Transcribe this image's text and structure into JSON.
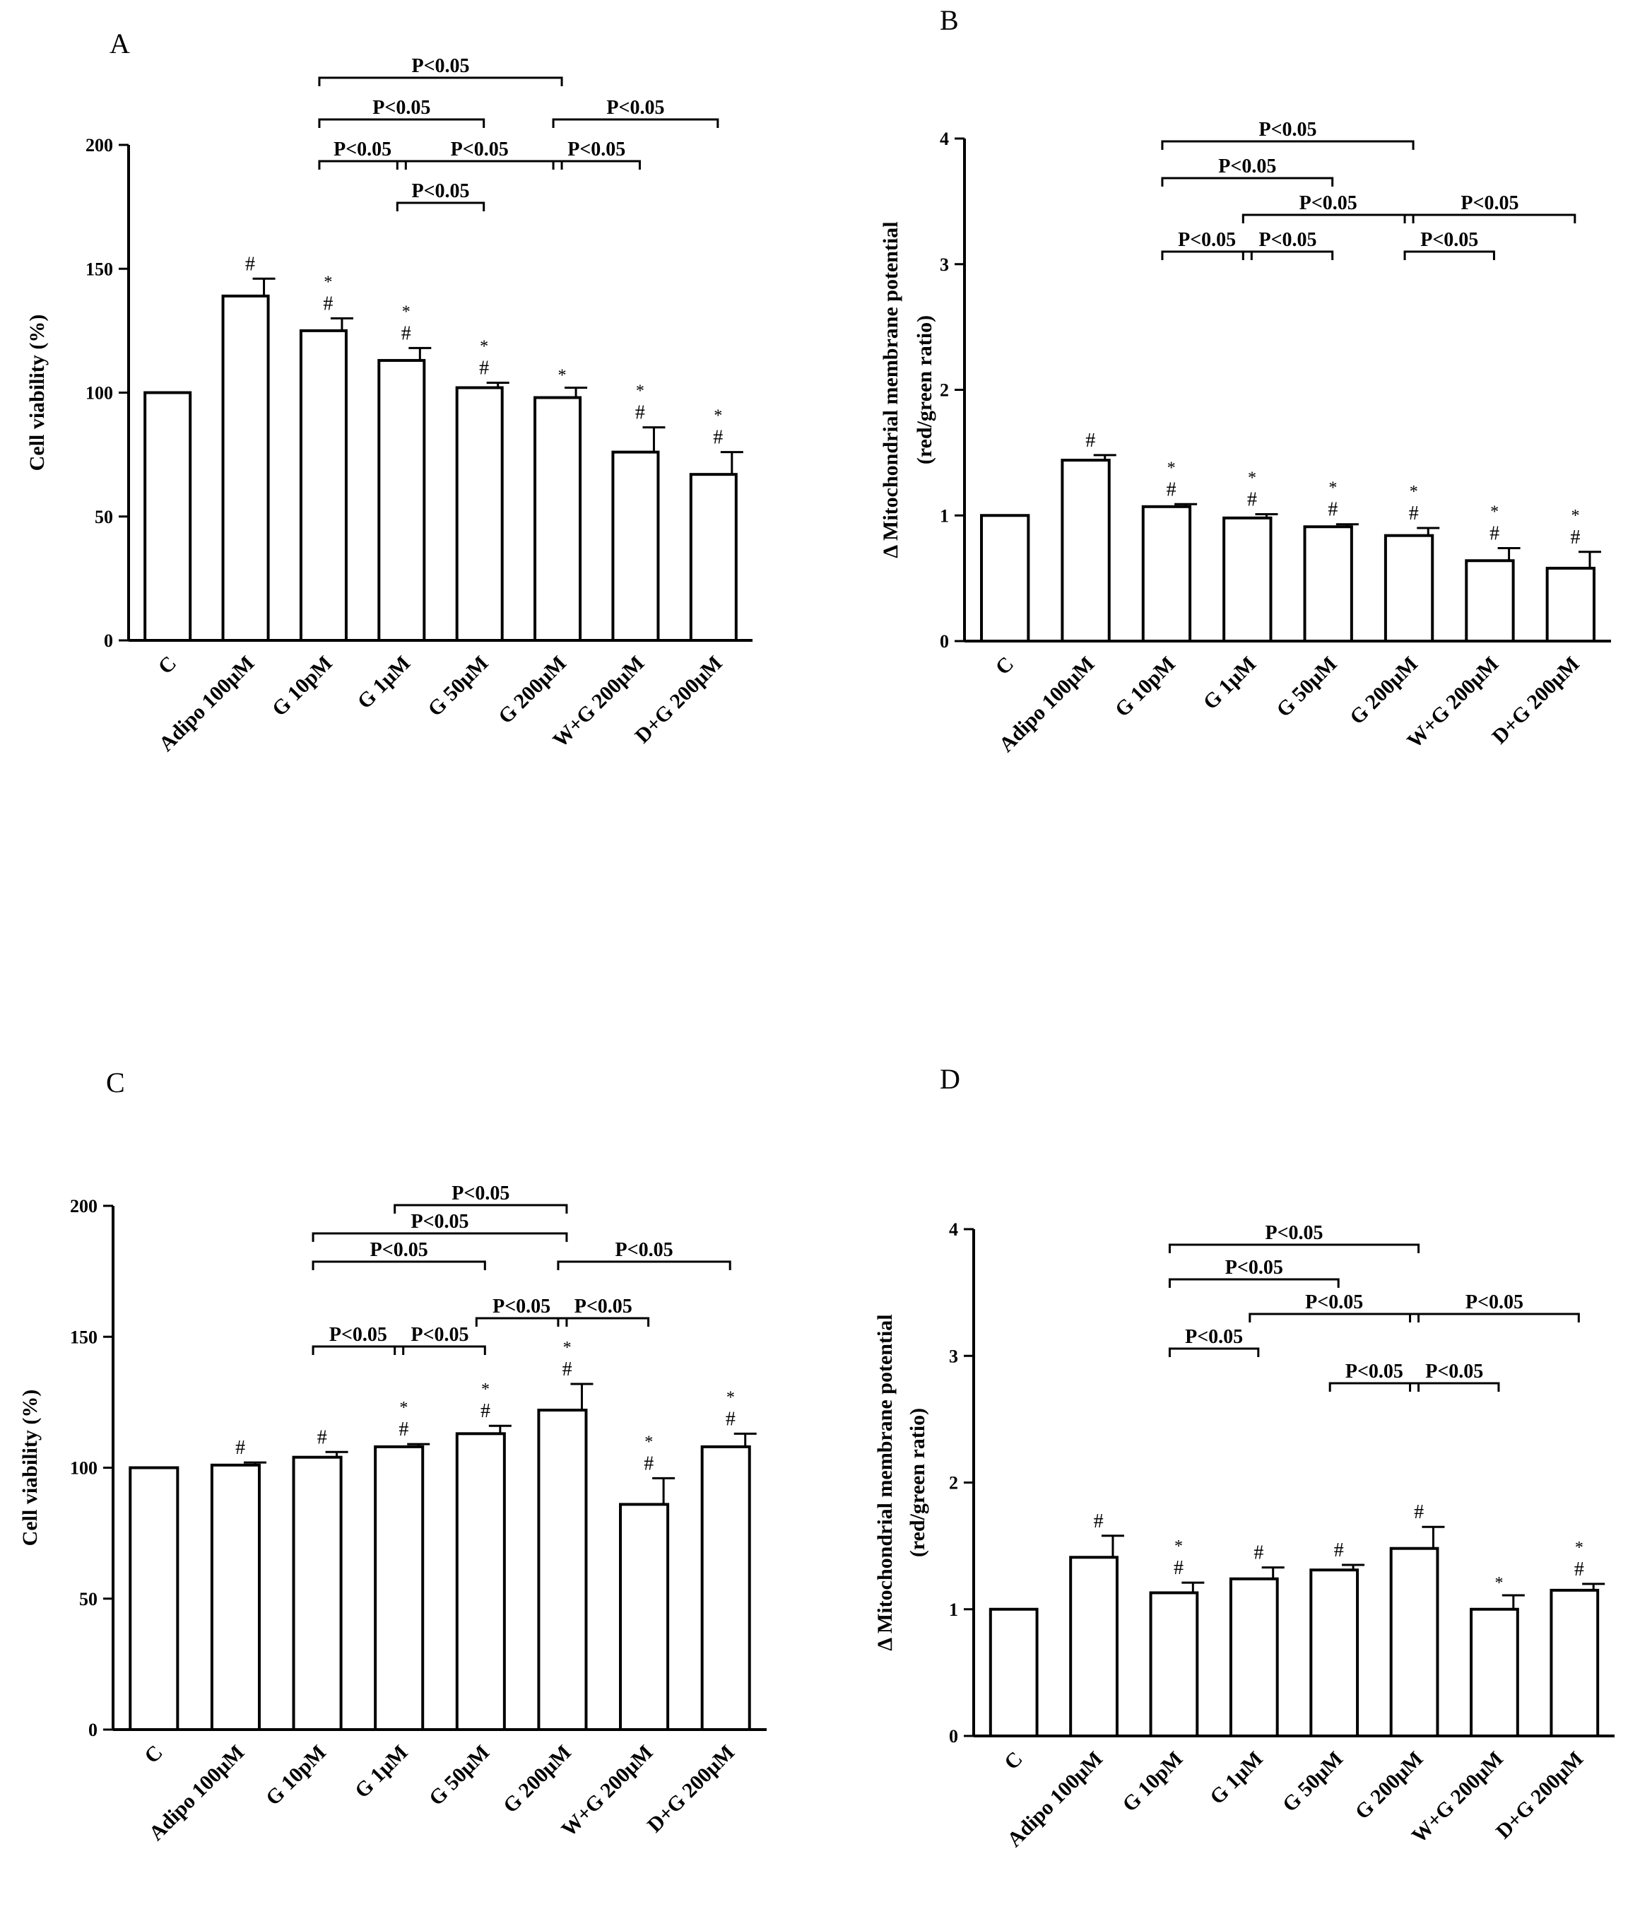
{
  "chart_data": [
    {
      "type": "bar",
      "panel_label": "A",
      "categories": [
        "C",
        "Adipo 100μM",
        "G 10pM",
        "G 1μM",
        "G 50μM",
        "G 200μM",
        "W+G 200μM",
        "D+G 200μM"
      ],
      "values": [
        100,
        139,
        125,
        113,
        102,
        98,
        76,
        67
      ],
      "errors": [
        0,
        7,
        5,
        5,
        2,
        4,
        10,
        9
      ],
      "marks": [
        "",
        "#",
        "*#",
        "*#",
        "*#",
        "*",
        "*#",
        "*#"
      ],
      "ylabel": "Cell viability (%)",
      "ylabel2": "",
      "ylim": [
        0,
        200
      ],
      "yticks": [
        0,
        50,
        100,
        150,
        200
      ],
      "brackets": [
        {
          "from": 2,
          "to": 5,
          "text": "P<0.05"
        },
        {
          "from": 2,
          "to": 4,
          "text": "P<0.05"
        },
        {
          "from": 2,
          "to": 3,
          "text": "P<0.05"
        },
        {
          "from": 3,
          "to": 5,
          "text": "P<0.05"
        },
        {
          "from": 3,
          "to": 4,
          "text": "P<0.05"
        },
        {
          "from": 5,
          "to": 7,
          "text": "P<0.05"
        },
        {
          "from": 5,
          "to": 6,
          "text": "P<0.05"
        }
      ]
    },
    {
      "type": "bar",
      "panel_label": "B",
      "categories": [
        "C",
        "Adipo 100μM",
        "G 10pM",
        "G 1μM",
        "G 50μM",
        "G 200μM",
        "W+G 200μM",
        "D+G 200μM"
      ],
      "values": [
        1.0,
        1.44,
        1.07,
        0.98,
        0.91,
        0.84,
        0.64,
        0.58
      ],
      "errors": [
        0,
        0.04,
        0.02,
        0.03,
        0.02,
        0.06,
        0.1,
        0.13
      ],
      "marks": [
        "",
        "#",
        "*#",
        "*#",
        "*#",
        "*#",
        "*#",
        "*#"
      ],
      "ylabel": "Δ Mitochondrial membrane potential",
      "ylabel2": "(red/green ratio)",
      "ylim": [
        0,
        4
      ],
      "yticks": [
        0,
        1,
        2,
        3,
        4
      ],
      "brackets": [
        {
          "from": 2,
          "to": 5,
          "text": "P<0.05"
        },
        {
          "from": 2,
          "to": 4,
          "text": "P<0.05"
        },
        {
          "from": 3,
          "to": 5,
          "text": "P<0.05"
        },
        {
          "from": 2,
          "to": 3,
          "text": "P<0.05"
        },
        {
          "from": 3,
          "to": 4,
          "text": "P<0.05"
        },
        {
          "from": 5,
          "to": 7,
          "text": "P<0.05"
        },
        {
          "from": 5,
          "to": 6,
          "text": "P<0.05"
        }
      ]
    },
    {
      "type": "bar",
      "panel_label": "C",
      "categories": [
        "C",
        "Adipo 100μM",
        "G 10pM",
        "G 1μM",
        "G 50μM",
        "G 200μM",
        "W+G 200μM",
        "D+G 200μM"
      ],
      "values": [
        100,
        101,
        104,
        108,
        113,
        122,
        86,
        108
      ],
      "errors": [
        0,
        1,
        2,
        1,
        3,
        10,
        10,
        5
      ],
      "marks": [
        "",
        "#",
        "#",
        "*#",
        "*#",
        "*#",
        "*#",
        "*#"
      ],
      "ylabel": "Cell viability (%)",
      "ylabel2": "",
      "ylim": [
        0,
        200
      ],
      "yticks": [
        0,
        50,
        100,
        150,
        200
      ],
      "brackets": [
        {
          "from": 3,
          "to": 5,
          "text": "P<0.05"
        },
        {
          "from": 2,
          "to": 5,
          "text": "P<0.05"
        },
        {
          "from": 5,
          "to": 7,
          "text": "P<0.05"
        },
        {
          "from": 2,
          "to": 4,
          "text": "P<0.05"
        },
        {
          "from": 4,
          "to": 5,
          "text": "P<0.05"
        },
        {
          "from": 5,
          "to": 6,
          "text": "P<0.05"
        },
        {
          "from": 2,
          "to": 3,
          "text": "P<0.05"
        },
        {
          "from": 3,
          "to": 4,
          "text": "P<0.05"
        }
      ]
    },
    {
      "type": "bar",
      "panel_label": "D",
      "categories": [
        "C",
        "Adipo 100μM",
        "G 10pM",
        "G 1μM",
        "G 50μM",
        "G 200μM",
        "W+G 200μM",
        "D+G 200μM"
      ],
      "values": [
        1.0,
        1.41,
        1.13,
        1.24,
        1.31,
        1.48,
        1.0,
        1.15
      ],
      "errors": [
        0,
        0.17,
        0.08,
        0.09,
        0.04,
        0.17,
        0.11,
        0.05
      ],
      "marks": [
        "",
        "#",
        "*#",
        "#",
        "#",
        "#",
        "*",
        "*#"
      ],
      "ylabel": "Δ Mitochondrial membrane potential",
      "ylabel2": "(red/green ratio)",
      "ylim": [
        0,
        4
      ],
      "yticks": [
        0,
        1,
        2,
        3,
        4
      ],
      "brackets": [
        {
          "from": 2,
          "to": 5,
          "text": "P<0.05"
        },
        {
          "from": 2,
          "to": 4,
          "text": "P<0.05"
        },
        {
          "from": 3,
          "to": 5,
          "text": "P<0.05"
        },
        {
          "from": 5,
          "to": 7,
          "text": "P<0.05"
        },
        {
          "from": 2,
          "to": 3,
          "text": "P<0.05"
        },
        {
          "from": 4,
          "to": 5,
          "text": "P<0.05"
        },
        {
          "from": 5,
          "to": 6,
          "text": "P<0.05"
        }
      ]
    }
  ]
}
